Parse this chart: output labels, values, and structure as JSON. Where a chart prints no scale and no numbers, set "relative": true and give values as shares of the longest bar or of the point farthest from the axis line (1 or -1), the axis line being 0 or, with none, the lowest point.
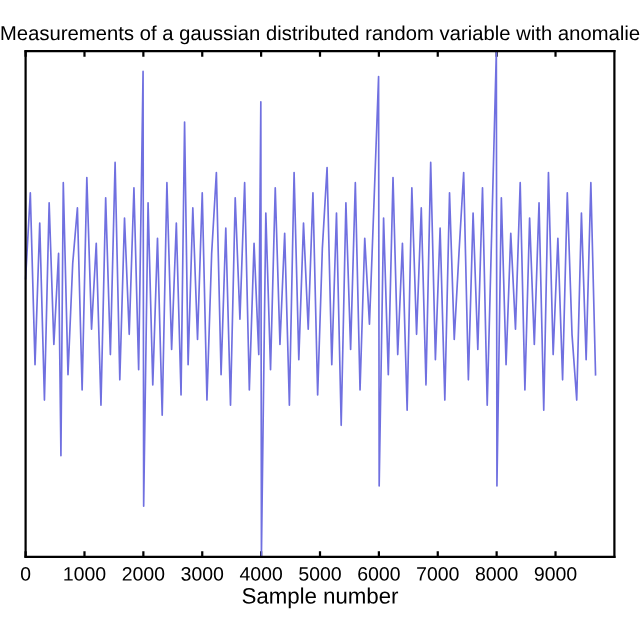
{
  "chart_data": {
    "type": "line",
    "relative": true,
    "title": "Measurements of a gaussian distributed random variable with anomalie",
    "xlabel": "Sample number",
    "x": [
      0,
      80,
      160,
      240,
      320,
      400,
      480,
      560,
      600,
      640,
      720,
      800,
      880,
      960,
      1040,
      1120,
      1200,
      1280,
      1360,
      1440,
      1520,
      1600,
      1680,
      1760,
      1840,
      1920,
      1995,
      2005,
      2080,
      2160,
      2240,
      2320,
      2400,
      2480,
      2560,
      2640,
      2700,
      2760,
      2840,
      2920,
      3000,
      3080,
      3160,
      3240,
      3320,
      3400,
      3480,
      3560,
      3640,
      3720,
      3800,
      3880,
      3960,
      3995,
      4005,
      4080,
      4160,
      4240,
      4320,
      4400,
      4480,
      4560,
      4640,
      4720,
      4800,
      4880,
      4960,
      5040,
      5120,
      5200,
      5280,
      5360,
      5440,
      5520,
      5600,
      5680,
      5760,
      5840,
      5920,
      5995,
      6005,
      6080,
      6160,
      6240,
      6320,
      6400,
      6480,
      6560,
      6640,
      6720,
      6800,
      6880,
      6960,
      7040,
      7120,
      7200,
      7280,
      7360,
      7440,
      7520,
      7600,
      7680,
      7760,
      7840,
      7920,
      7995,
      8005,
      8080,
      8160,
      8240,
      8320,
      8400,
      8480,
      8560,
      8640,
      8720,
      8800,
      8880,
      8960,
      9040,
      9120,
      9200,
      9280,
      9360,
      9440,
      9520,
      9600,
      9680
    ],
    "values": [
      0.55,
      0.72,
      0.38,
      0.66,
      0.31,
      0.7,
      0.42,
      0.6,
      0.2,
      0.74,
      0.36,
      0.58,
      0.69,
      0.33,
      0.75,
      0.45,
      0.62,
      0.3,
      0.71,
      0.4,
      0.78,
      0.35,
      0.67,
      0.44,
      0.73,
      0.37,
      0.96,
      0.1,
      0.7,
      0.34,
      0.63,
      0.28,
      0.74,
      0.41,
      0.66,
      0.32,
      0.86,
      0.38,
      0.69,
      0.43,
      0.72,
      0.31,
      0.6,
      0.76,
      0.36,
      0.65,
      0.3,
      0.71,
      0.47,
      0.74,
      0.33,
      0.62,
      0.4,
      0.9,
      0.0,
      0.68,
      0.37,
      0.73,
      0.42,
      0.64,
      0.3,
      0.76,
      0.39,
      0.66,
      0.45,
      0.72,
      0.32,
      0.61,
      0.77,
      0.38,
      0.68,
      0.26,
      0.7,
      0.41,
      0.74,
      0.33,
      0.63,
      0.46,
      0.71,
      0.95,
      0.14,
      0.67,
      0.36,
      0.75,
      0.4,
      0.62,
      0.29,
      0.73,
      0.44,
      0.69,
      0.34,
      0.78,
      0.39,
      0.65,
      0.31,
      0.72,
      0.43,
      0.6,
      0.76,
      0.35,
      0.68,
      0.41,
      0.73,
      0.3,
      0.66,
      1.0,
      0.14,
      0.71,
      0.38,
      0.64,
      0.45,
      0.74,
      0.33,
      0.67,
      0.42,
      0.7,
      0.29,
      0.76,
      0.4,
      0.63,
      0.35,
      0.72,
      0.44,
      0.31,
      0.68,
      0.39,
      0.74,
      0.36
    ],
    "color": "#7070e0",
    "xlim": [
      0,
      10000
    ],
    "xticks": [
      0,
      1000,
      2000,
      3000,
      4000,
      5000,
      6000,
      7000,
      8000,
      9000
    ],
    "tick_labels": "x",
    "grid": false,
    "legend": false,
    "marker": "none",
    "line_style": "solid"
  }
}
